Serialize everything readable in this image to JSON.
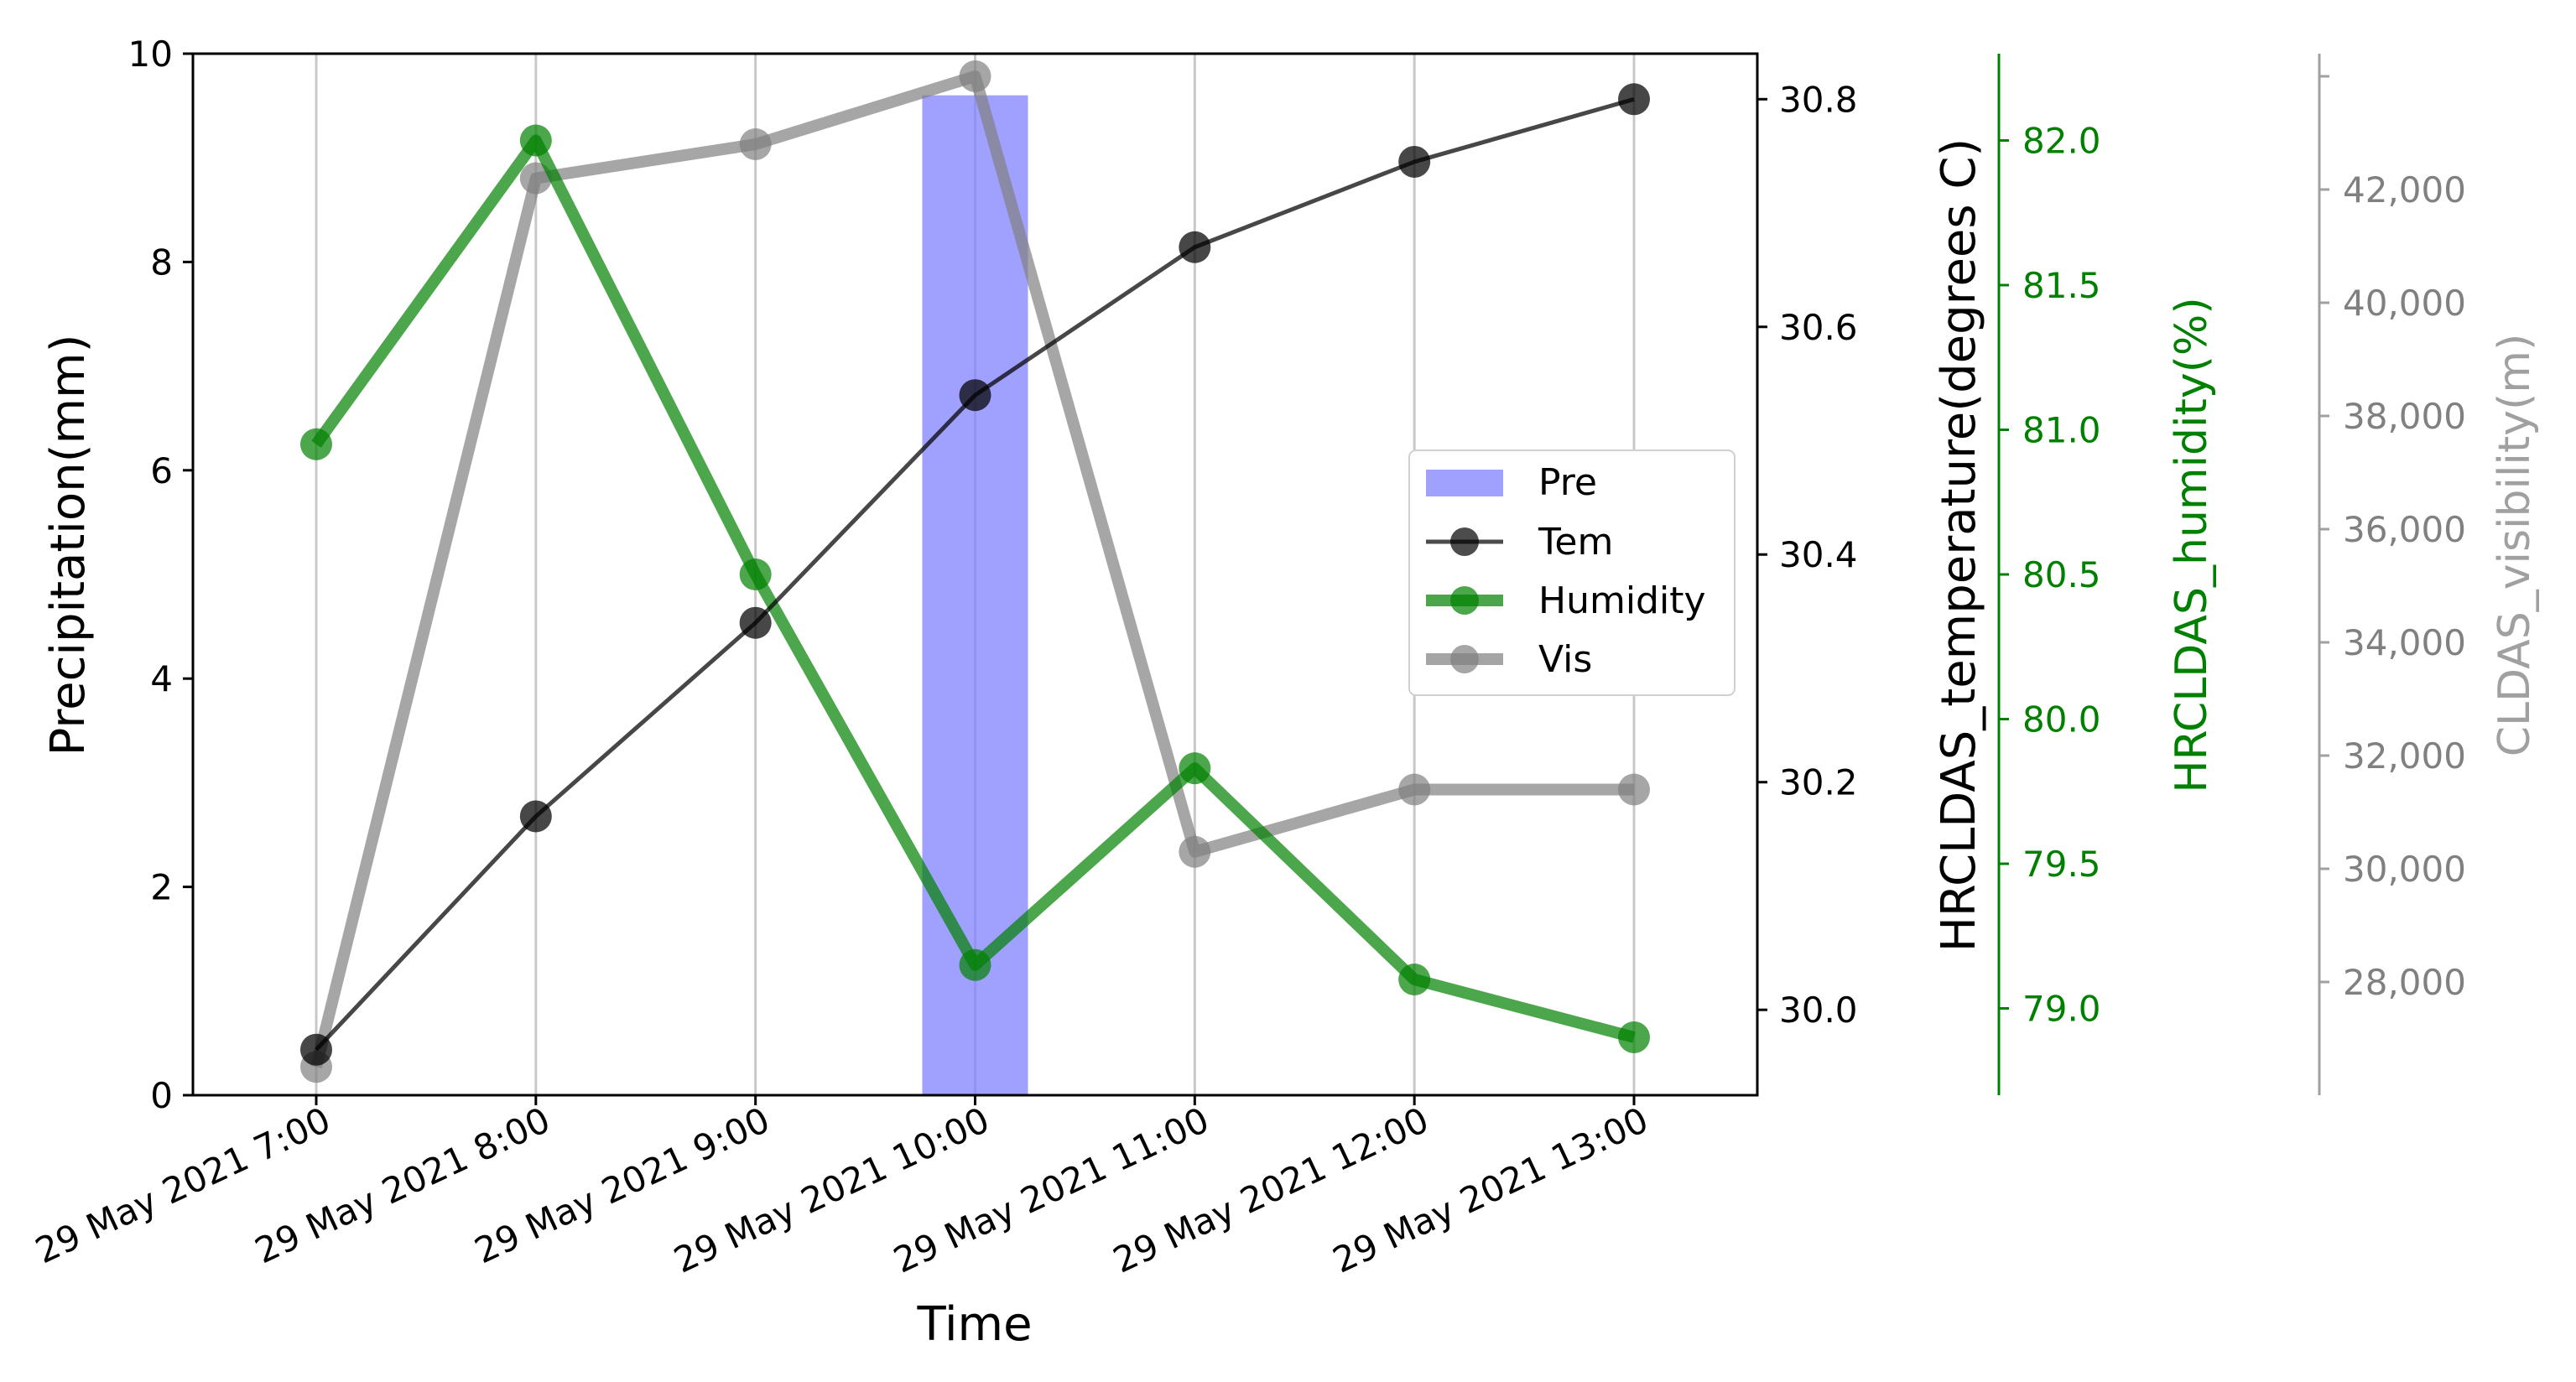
{
  "chart_data": {
    "type": "bar+line",
    "categories": [
      "29 May 2021 7:00",
      "29 May 2021 8:00",
      "29 May 2021 9:00",
      "29 May 2021 10:00",
      "29 May 2021 11:00",
      "29 May 2021 12:00",
      "29 May 2021 13:00"
    ],
    "xlabel": "Time",
    "grid": "vertical",
    "legend_position": "center-right",
    "axes": {
      "precip": {
        "label": "Precipitation(mm)",
        "ylim": [
          0,
          10
        ],
        "ticks": [
          0,
          2,
          4,
          6,
          8,
          10
        ],
        "tick_labels": [
          "0",
          "2",
          "4",
          "6",
          "8",
          "10"
        ],
        "color": "#000000"
      },
      "temp": {
        "label": "HRCLDAS_temperature(degrees C)",
        "ylim": [
          29.925,
          30.84
        ],
        "ticks": [
          30.0,
          30.2,
          30.4,
          30.6,
          30.8
        ],
        "tick_labels": [
          "30.0",
          "30.2",
          "30.4",
          "30.6",
          "30.8"
        ],
        "color": "#000000"
      },
      "humidity": {
        "label": "HRCLDAS_humidity(%)",
        "ylim": [
          78.7,
          82.3
        ],
        "ticks": [
          79.0,
          79.5,
          80.0,
          80.5,
          81.0,
          81.5,
          82.0
        ],
        "tick_labels": [
          "79.0",
          "79.5",
          "80.0",
          "80.5",
          "81.0",
          "81.5",
          "82.0"
        ],
        "color": "#008000"
      },
      "visibility": {
        "label": "CLDAS_visibility(m)",
        "ylim": [
          26000,
          44400
        ],
        "ticks": [
          28000,
          30000,
          32000,
          34000,
          36000,
          38000,
          40000,
          42000,
          44000
        ],
        "tick_labels": [
          "28,000",
          "30,000",
          "32,000",
          "34,000",
          "36,000",
          "38,000",
          "40,000",
          "42,000",
          ""
        ],
        "color": "#808080"
      }
    },
    "series": [
      {
        "name": "Pre",
        "kind": "bar",
        "axis": "precip",
        "color": "#8080ff",
        "values": [
          0,
          0,
          0,
          9.6,
          0,
          0,
          0
        ]
      },
      {
        "name": "Tem",
        "kind": "line",
        "axis": "temp",
        "color": "#000000",
        "values": [
          29.965,
          30.17,
          30.34,
          30.54,
          30.67,
          30.745,
          30.8
        ]
      },
      {
        "name": "Humidity",
        "kind": "line",
        "axis": "humidity",
        "color": "#008000",
        "values": [
          80.95,
          82.0,
          80.5,
          79.15,
          79.83,
          79.1,
          78.9
        ]
      },
      {
        "name": "Vis",
        "kind": "line",
        "axis": "visibility",
        "color": "#808080",
        "values": [
          26500,
          42200,
          42800,
          44000,
          30300,
          31400,
          31400
        ]
      }
    ]
  }
}
